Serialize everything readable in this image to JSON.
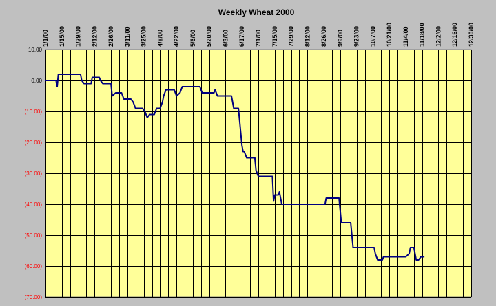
{
  "chart_data": {
    "type": "line",
    "title": "Weekly Wheat  2000",
    "xlabel": "",
    "ylabel": "",
    "ylim": [
      -70,
      10
    ],
    "yticks": [
      10,
      0,
      -10,
      -20,
      -30,
      -40,
      -50,
      -60,
      -70
    ],
    "ytick_labels": [
      "10.00",
      "0.00",
      "(10.00)",
      "(20.00)",
      "(30.00)",
      "(40.00)",
      "(50.00)",
      "(60.00)",
      "(70.00)"
    ],
    "xlim": [
      "2000-01-01",
      "2000-12-30"
    ],
    "x_gridlines_every_days": 7,
    "xtick_labels": [
      "1/1/00",
      "1/15/00",
      "1/29/00",
      "2/12/00",
      "2/26/00",
      "3/11/00",
      "3/25/00",
      "4/8/00",
      "4/22/00",
      "5/6/00",
      "5/20/00",
      "6/3/00",
      "6/17/00",
      "7/1/00",
      "7/15/00",
      "7/29/00",
      "8/12/00",
      "8/26/00",
      "9/9/00",
      "9/23/00",
      "10/7/00",
      "10/21/00",
      "11/4/00",
      "11/18/00",
      "12/2/00",
      "12/16/00",
      "12/30/00"
    ],
    "grid": true,
    "plot_background": "#ffff99",
    "line_color": "#000080",
    "positive_tick_color": "#000000",
    "negative_tick_color": "#ff0000",
    "series": [
      {
        "values": [
          [
            "2000-01-01",
            0
          ],
          [
            "2000-01-10",
            0
          ],
          [
            "2000-01-11",
            -2
          ],
          [
            "2000-01-12",
            2
          ],
          [
            "2000-01-25",
            2
          ],
          [
            "2000-01-31",
            2
          ],
          [
            "2000-02-01",
            0
          ],
          [
            "2000-02-03",
            -1
          ],
          [
            "2000-02-09",
            -1
          ],
          [
            "2000-02-10",
            1
          ],
          [
            "2000-02-16",
            1
          ],
          [
            "2000-02-17",
            0
          ],
          [
            "2000-02-19",
            -1
          ],
          [
            "2000-02-26",
            -1
          ],
          [
            "2000-02-27",
            -5
          ],
          [
            "2000-03-01",
            -4
          ],
          [
            "2000-03-06",
            -4
          ],
          [
            "2000-03-08",
            -6
          ],
          [
            "2000-03-14",
            -6
          ],
          [
            "2000-03-16",
            -7
          ],
          [
            "2000-03-18",
            -9
          ],
          [
            "2000-03-24",
            -9
          ],
          [
            "2000-03-26",
            -10
          ],
          [
            "2000-03-28",
            -12
          ],
          [
            "2000-03-30",
            -11
          ],
          [
            "2000-04-03",
            -11
          ],
          [
            "2000-04-05",
            -9
          ],
          [
            "2000-04-08",
            -9
          ],
          [
            "2000-04-10",
            -7
          ],
          [
            "2000-04-11",
            -5
          ],
          [
            "2000-04-13",
            -3
          ],
          [
            "2000-04-20",
            -3
          ],
          [
            "2000-04-22",
            -5
          ],
          [
            "2000-04-25",
            -4
          ],
          [
            "2000-04-27",
            -2
          ],
          [
            "2000-05-12",
            -2
          ],
          [
            "2000-05-14",
            -4
          ],
          [
            "2000-05-24",
            -4
          ],
          [
            "2000-05-25",
            -3
          ],
          [
            "2000-05-27",
            -5
          ],
          [
            "2000-06-08",
            -5
          ],
          [
            "2000-06-10",
            -9
          ],
          [
            "2000-06-14",
            -9
          ],
          [
            "2000-06-15",
            -13
          ],
          [
            "2000-06-17",
            -21
          ],
          [
            "2000-06-18",
            -23
          ],
          [
            "2000-06-19",
            -23
          ],
          [
            "2000-06-21",
            -25
          ],
          [
            "2000-06-28",
            -25
          ],
          [
            "2000-06-29",
            -29
          ],
          [
            "2000-07-01",
            -31
          ],
          [
            "2000-07-13",
            -31
          ],
          [
            "2000-07-14",
            -39
          ],
          [
            "2000-07-15",
            -37
          ],
          [
            "2000-07-18",
            -37
          ],
          [
            "2000-07-19",
            -36
          ],
          [
            "2000-07-21",
            -40
          ],
          [
            "2000-08-27",
            -40
          ],
          [
            "2000-08-28",
            -38
          ],
          [
            "2000-09-08",
            -38
          ],
          [
            "2000-09-10",
            -46
          ],
          [
            "2000-09-18",
            -46
          ],
          [
            "2000-09-20",
            -54
          ],
          [
            "2000-10-08",
            -54
          ],
          [
            "2000-10-09",
            -56
          ],
          [
            "2000-10-10",
            -57
          ],
          [
            "2000-10-11",
            -58
          ],
          [
            "2000-10-15",
            -58
          ],
          [
            "2000-10-16",
            -57
          ],
          [
            "2000-11-03",
            -57
          ],
          [
            "2000-11-04",
            -57
          ],
          [
            "2000-11-07",
            -56
          ],
          [
            "2000-11-08",
            -54
          ],
          [
            "2000-11-11",
            -54
          ],
          [
            "2000-11-13",
            -58
          ],
          [
            "2000-11-15",
            -58
          ],
          [
            "2000-11-17",
            -57
          ],
          [
            "2000-11-20",
            -57
          ]
        ]
      }
    ]
  }
}
